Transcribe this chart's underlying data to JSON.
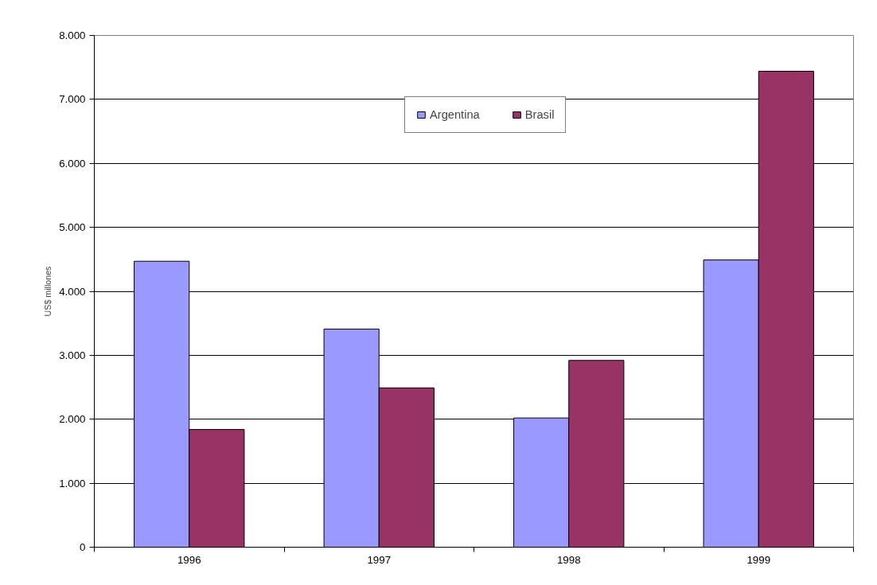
{
  "chart_data": {
    "type": "bar",
    "categories": [
      "1996",
      "1997",
      "1998",
      "1999"
    ],
    "ylabel": "US$ millones",
    "series": [
      {
        "name": "Argentina",
        "color": "#9999ff",
        "values": [
          4470,
          3410,
          2020,
          4490
        ]
      },
      {
        "name": "Brasil",
        "color": "#993366",
        "values": [
          1840,
          2490,
          2920,
          7440
        ]
      }
    ],
    "ylim": [
      0,
      8000
    ],
    "yticks": [
      {
        "value": 0,
        "label": "0"
      },
      {
        "value": 1000,
        "label": "1.000"
      },
      {
        "value": 2000,
        "label": "2.000"
      },
      {
        "value": 3000,
        "label": "3.000"
      },
      {
        "value": 4000,
        "label": "4.000"
      },
      {
        "value": 5000,
        "label": "5.000"
      },
      {
        "value": 6000,
        "label": "6.000"
      },
      {
        "value": 7000,
        "label": "7.000"
      },
      {
        "value": 8000,
        "label": "8.000"
      }
    ],
    "grid": "y",
    "legend": "top"
  }
}
